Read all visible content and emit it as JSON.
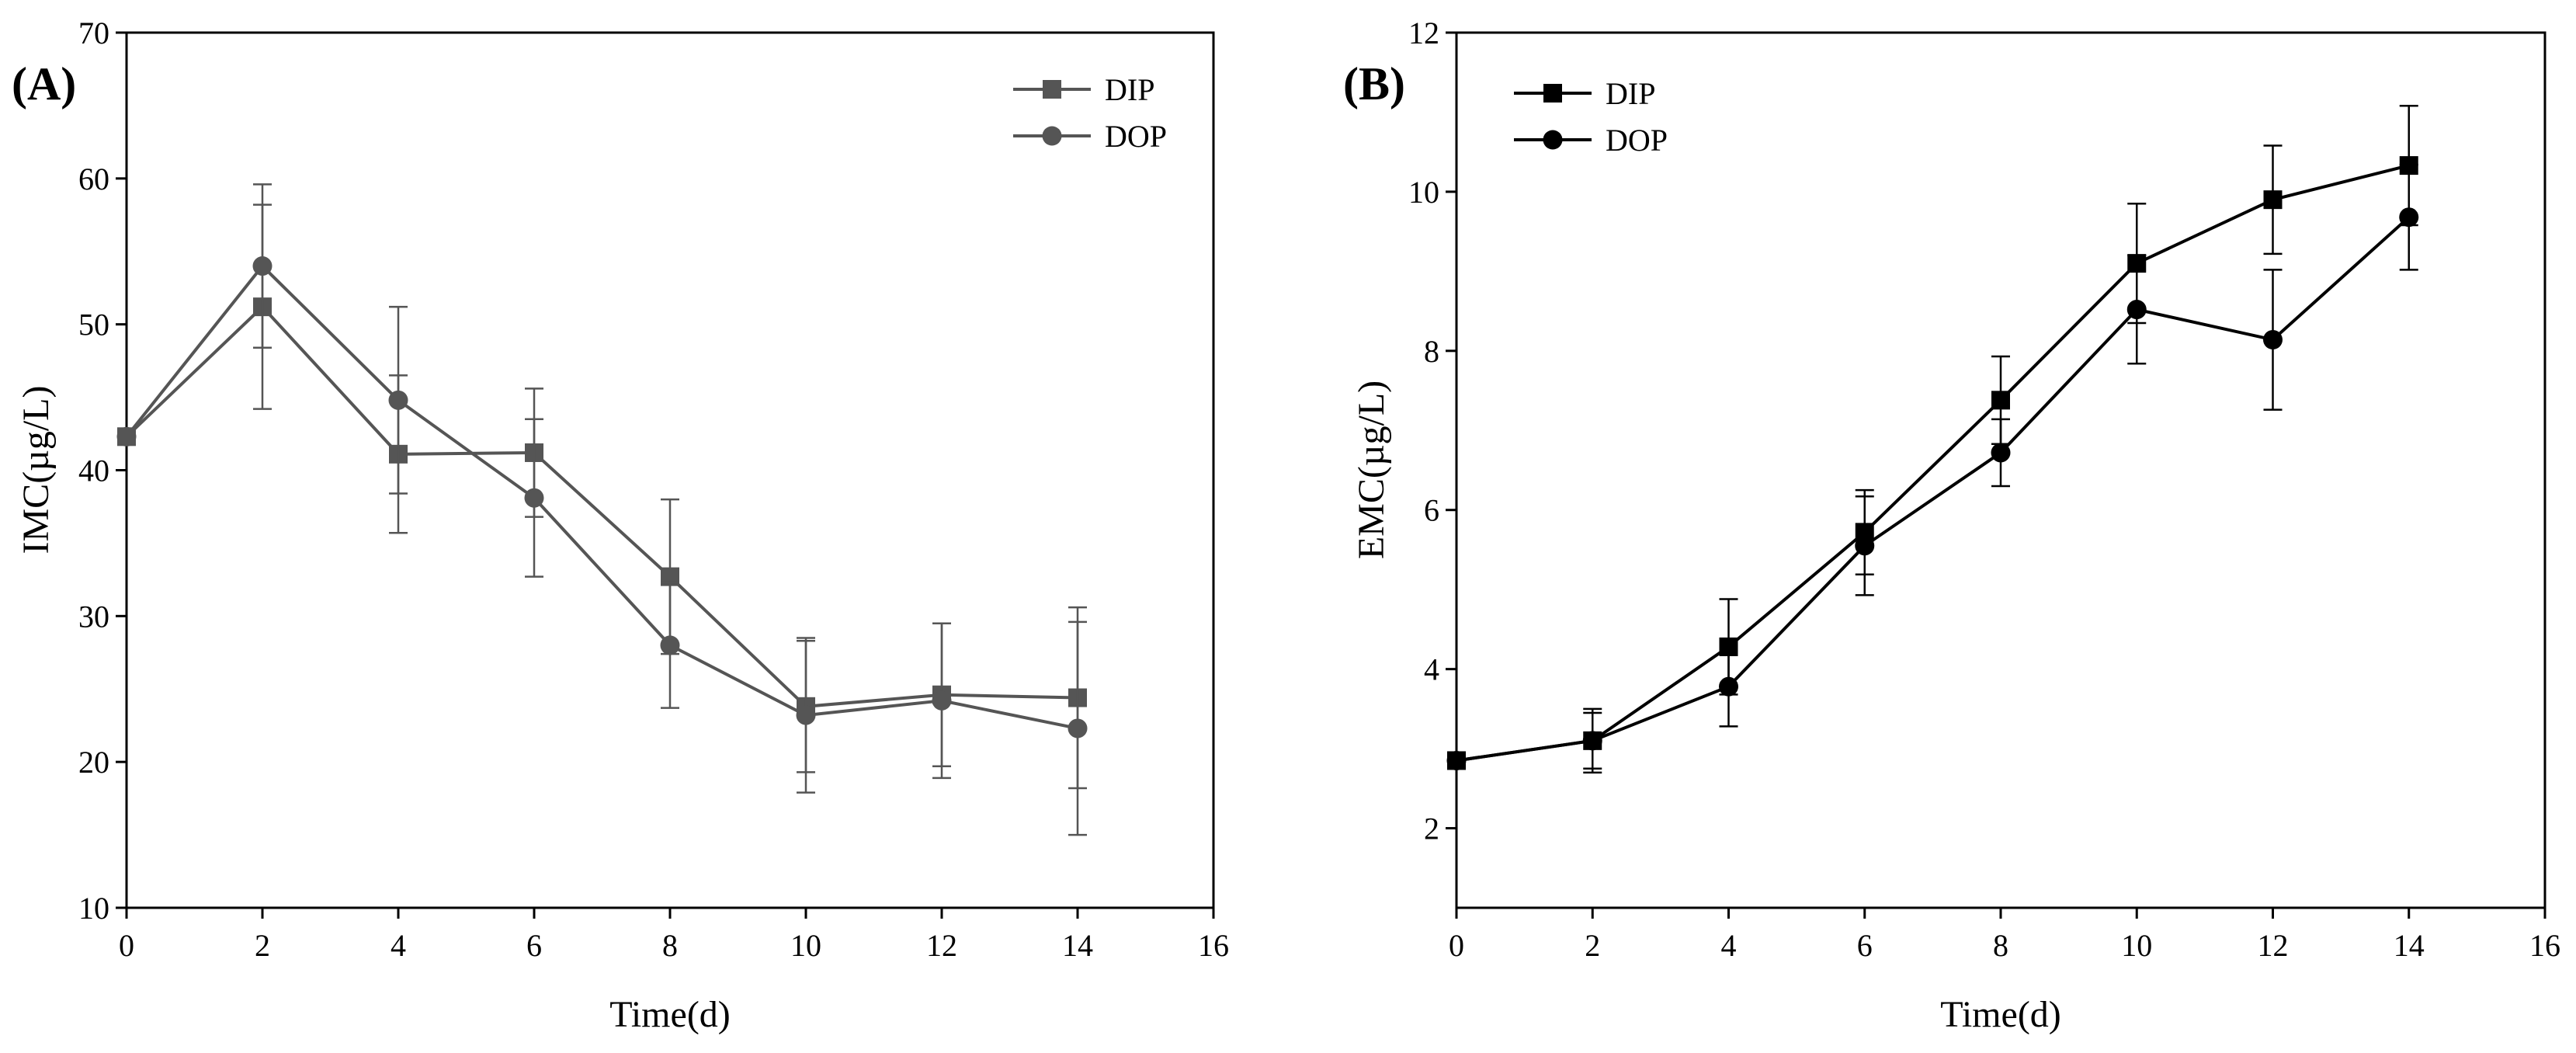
{
  "chart_data": [
    {
      "panel_label": "(A)",
      "type": "line",
      "title": "",
      "xlabel": "Time(d)",
      "ylabel": "IMC(µg/L)",
      "xlim": [
        0,
        16
      ],
      "ylim": [
        10,
        70
      ],
      "xticks": [
        0,
        2,
        4,
        6,
        8,
        10,
        12,
        14,
        16
      ],
      "yticks": [
        10,
        20,
        30,
        40,
        50,
        60,
        70
      ],
      "legend_position": "top-right",
      "color": "#555555",
      "series": [
        {
          "name": "DIP",
          "marker": "square",
          "x": [
            0,
            2,
            4,
            6,
            8,
            10,
            12,
            14
          ],
          "y": [
            42.3,
            51.2,
            41.1,
            41.2,
            32.7,
            23.8,
            24.6,
            24.4
          ],
          "err": [
            0,
            7.0,
            5.4,
            4.4,
            5.3,
            4.5,
            4.9,
            6.2
          ]
        },
        {
          "name": "DOP",
          "marker": "circle",
          "x": [
            0,
            2,
            4,
            6,
            8,
            10,
            12,
            14
          ],
          "y": [
            42.3,
            54.0,
            44.8,
            38.1,
            28.0,
            23.2,
            24.2,
            22.3
          ],
          "err": [
            0,
            5.6,
            6.4,
            5.4,
            4.3,
            5.3,
            5.3,
            7.3
          ]
        }
      ]
    },
    {
      "panel_label": "(B)",
      "type": "line",
      "title": "",
      "xlabel": "Time(d)",
      "ylabel": "EMC(µg/L)",
      "xlim": [
        0,
        16
      ],
      "ylim": [
        1,
        12
      ],
      "xticks": [
        0,
        2,
        4,
        6,
        8,
        10,
        12,
        14,
        16
      ],
      "yticks": [
        2,
        4,
        6,
        8,
        10,
        12
      ],
      "legend_position": "top-left",
      "color": "#000000",
      "series": [
        {
          "name": "DIP",
          "marker": "square",
          "x": [
            0,
            2,
            4,
            6,
            8,
            10,
            12,
            14
          ],
          "y": [
            2.85,
            3.1,
            4.28,
            5.72,
            7.38,
            9.1,
            9.9,
            10.33
          ],
          "err": [
            0,
            0.4,
            0.6,
            0.53,
            0.55,
            0.75,
            0.68,
            0.75
          ]
        },
        {
          "name": "DOP",
          "marker": "circle",
          "x": [
            0,
            2,
            4,
            6,
            8,
            10,
            12,
            14
          ],
          "y": [
            2.85,
            3.1,
            3.78,
            5.55,
            6.72,
            8.52,
            8.14,
            9.68
          ],
          "err": [
            0,
            0.35,
            0.5,
            0.62,
            0.42,
            0.68,
            0.88,
            0.66
          ]
        }
      ]
    }
  ]
}
